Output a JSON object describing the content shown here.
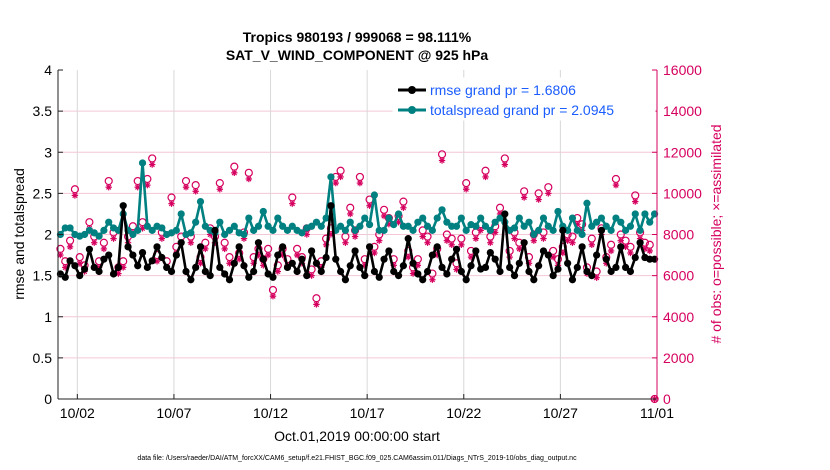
{
  "chart_data": {
    "type": "line",
    "title": "Tropics 980193 / 999068 = 98.111%",
    "subtitle": "SAT_V_WIND_COMPONENT @ 925 hPa",
    "xlabel": "Oct.01,2019 00:00:00 start",
    "ylabel": "rmse and totalspread",
    "ylabel_right": "# of obs: o=possible; ×=assimilated",
    "footnote": "data file: /Users/raeder/DAI/ATM_forcXX/CAM6_setup/f.e21.FHIST_BGC.f09_025.CAM6assim.011/Diags_NTrS_2019-10/obs_diag_output.nc",
    "x_unit": "days since Oct.01,2019 00:00",
    "x_step_days": 0.25,
    "xlim": [
      0,
      31
    ],
    "ylim": [
      0,
      4
    ],
    "ylim_right": [
      0,
      16000
    ],
    "x_ticks": [
      {
        "day": 1,
        "label": "10/02"
      },
      {
        "day": 6,
        "label": "10/07"
      },
      {
        "day": 11,
        "label": "10/12"
      },
      {
        "day": 16,
        "label": "10/17"
      },
      {
        "day": 21,
        "label": "10/22"
      },
      {
        "day": 26,
        "label": "10/27"
      },
      {
        "day": 31,
        "label": "11/01"
      }
    ],
    "y_ticks": [
      "0",
      "0.5",
      "1",
      "1.5",
      "2",
      "2.5",
      "3",
      "3.5",
      "4"
    ],
    "y_ticks_right": [
      "0",
      "2000",
      "4000",
      "6000",
      "8000",
      "10000",
      "12000",
      "14000",
      "16000"
    ],
    "grid": true,
    "legend": {
      "placement": "top-right",
      "entries": [
        "rmse grand pr = 1.6806",
        "totalspread grand pr = 2.0945"
      ]
    },
    "colors": {
      "rmse": "#000000",
      "totalspread": "#008080",
      "obs": "#d6005f",
      "grid_h": "#f4c6d6",
      "grid_v": "#d8d8d8"
    },
    "series": [
      {
        "name": "rmse",
        "values": [
          1.52,
          1.48,
          1.68,
          1.62,
          1.5,
          1.58,
          1.82,
          1.6,
          1.55,
          1.7,
          1.75,
          1.52,
          1.6,
          2.35,
          1.85,
          1.75,
          1.62,
          1.78,
          1.6,
          1.68,
          1.85,
          1.72,
          1.6,
          1.55,
          1.75,
          1.9,
          1.55,
          1.45,
          1.6,
          1.85,
          1.55,
          1.5,
          2.05,
          1.6,
          1.52,
          1.45,
          1.65,
          1.85,
          1.62,
          1.48,
          1.55,
          1.9,
          1.7,
          1.52,
          1.48,
          1.75,
          1.85,
          1.6,
          1.65,
          1.55,
          1.7,
          1.5,
          1.8,
          1.65,
          1.55,
          1.72,
          2.35,
          1.7,
          1.55,
          1.45,
          1.62,
          1.8,
          1.6,
          1.5,
          1.85,
          1.55,
          1.48,
          1.7,
          1.8,
          1.55,
          1.5,
          1.62,
          1.95,
          1.65,
          1.52,
          1.45,
          1.55,
          1.75,
          1.85,
          1.6,
          1.52,
          1.7,
          1.82,
          1.55,
          1.45,
          1.62,
          1.8,
          1.58,
          1.6,
          1.78,
          1.7,
          1.55,
          2.25,
          1.6,
          1.5,
          1.65,
          1.9,
          1.55,
          1.45,
          1.62,
          1.8,
          1.75,
          1.5,
          1.58,
          2.05,
          1.65,
          1.45,
          1.6,
          1.85,
          1.55,
          1.5,
          1.75,
          2.05,
          1.7,
          1.55,
          1.6,
          1.85,
          1.6,
          1.55,
          1.72,
          1.9,
          1.72,
          1.7,
          1.7
        ]
      },
      {
        "name": "totalspread",
        "values": [
          2.0,
          2.08,
          2.08,
          2.0,
          1.98,
          2.0,
          2.05,
          2.02,
          1.98,
          2.05,
          2.15,
          2.08,
          2.05,
          2.25,
          2.05,
          2.0,
          2.05,
          2.87,
          2.1,
          2.05,
          2.1,
          2.08,
          2.0,
          2.02,
          2.05,
          2.25,
          2.0,
          2.02,
          2.15,
          2.4,
          2.1,
          2.05,
          2.02,
          2.15,
          2.0,
          2.05,
          2.1,
          2.02,
          2.0,
          2.2,
          2.05,
          2.1,
          2.28,
          2.1,
          2.05,
          2.2,
          2.1,
          2.05,
          2.1,
          2.05,
          2.02,
          2.08,
          2.1,
          2.15,
          2.1,
          2.2,
          2.7,
          2.05,
          2.1,
          2.05,
          2.15,
          2.05,
          2.1,
          2.2,
          2.12,
          2.48,
          2.05,
          2.05,
          2.2,
          2.12,
          2.25,
          2.1,
          2.1,
          2.05,
          2.15,
          2.2,
          2.1,
          2.05,
          2.2,
          2.3,
          2.15,
          2.1,
          2.1,
          2.2,
          2.05,
          2.12,
          2.1,
          2.2,
          2.1,
          2.05,
          2.15,
          2.2,
          2.15,
          2.05,
          2.08,
          2.2,
          2.1,
          2.15,
          2.0,
          2.05,
          2.2,
          2.1,
          2.05,
          2.28,
          2.1,
          2.05,
          2.2,
          2.05,
          2.0,
          2.38,
          2.1,
          2.15,
          2.2,
          2.1,
          2.05,
          2.2,
          2.15,
          2.05,
          2.1,
          2.25,
          2.05,
          2.25,
          2.15,
          2.25
        ]
      },
      {
        "name": "obs_possible",
        "axis": "right",
        "values": [
          7300,
          6700,
          7700,
          10200,
          6900,
          6500,
          8600,
          7900,
          6700,
          7600,
          10600,
          8100,
          6400,
          6700,
          7900,
          8400,
          10600,
          8600,
          10700,
          11700,
          7000,
          8100,
          6700,
          9800,
          7400,
          7900,
          10600,
          7900,
          10400,
          6900,
          7600,
          8300,
          7900,
          10500,
          7600,
          6900,
          11300,
          7100,
          8100,
          11000,
          6900,
          7300,
          6800,
          7300,
          5300,
          6500,
          7300,
          6800,
          9800,
          7300,
          6900,
          8300,
          6300,
          4900,
          6700,
          7800,
          8300,
          10800,
          11100,
          7900,
          9300,
          8200,
          10800,
          6800,
          9700,
          7400,
          8000,
          9200,
          8800,
          6800,
          8900,
          9600,
          7200,
          6400,
          6800,
          8200,
          7900,
          6100,
          7300,
          11900,
          8000,
          7800,
          6600,
          7800,
          10500,
          7200,
          8100,
          8500,
          11100,
          7900,
          8400,
          9300,
          11700,
          7200,
          8100,
          7600,
          10100,
          6900,
          8000,
          10000,
          8100,
          10300,
          7200,
          6800,
          7400,
          8000,
          7900,
          8800,
          8500,
          6400,
          7800,
          6200,
          8300,
          6900,
          7500,
          10700,
          8000,
          7700,
          7400,
          9900,
          8100,
          7600,
          7500,
          0
        ]
      },
      {
        "name": "obs_assimilated",
        "axis": "right",
        "values": [
          7000,
          6400,
          7400,
          9900,
          6600,
          6200,
          8300,
          7600,
          6400,
          7300,
          10300,
          7800,
          6100,
          6400,
          7600,
          8100,
          10300,
          8300,
          10400,
          11400,
          6700,
          7800,
          6400,
          9500,
          7100,
          7600,
          10300,
          7600,
          10100,
          6600,
          7300,
          8000,
          7600,
          10200,
          7300,
          6600,
          11000,
          6800,
          7800,
          10700,
          6600,
          7000,
          6500,
          7000,
          5000,
          6200,
          7000,
          6500,
          9500,
          7000,
          6600,
          8000,
          6000,
          4600,
          6400,
          7500,
          8000,
          10500,
          10800,
          7600,
          9000,
          7900,
          10500,
          6500,
          9400,
          7100,
          7700,
          8900,
          8500,
          6500,
          8600,
          9300,
          6900,
          6100,
          6500,
          7900,
          7600,
          5800,
          7000,
          11600,
          7700,
          7500,
          6300,
          7500,
          10200,
          6900,
          7800,
          8200,
          10800,
          7600,
          8100,
          9000,
          11400,
          6900,
          7800,
          7300,
          9800,
          6600,
          7700,
          9700,
          7800,
          10000,
          6900,
          6500,
          7100,
          7700,
          7600,
          8500,
          8200,
          6100,
          7500,
          5900,
          8000,
          6600,
          7200,
          10400,
          7700,
          7400,
          7100,
          9600,
          7800,
          7300,
          7200,
          0
        ]
      }
    ]
  }
}
